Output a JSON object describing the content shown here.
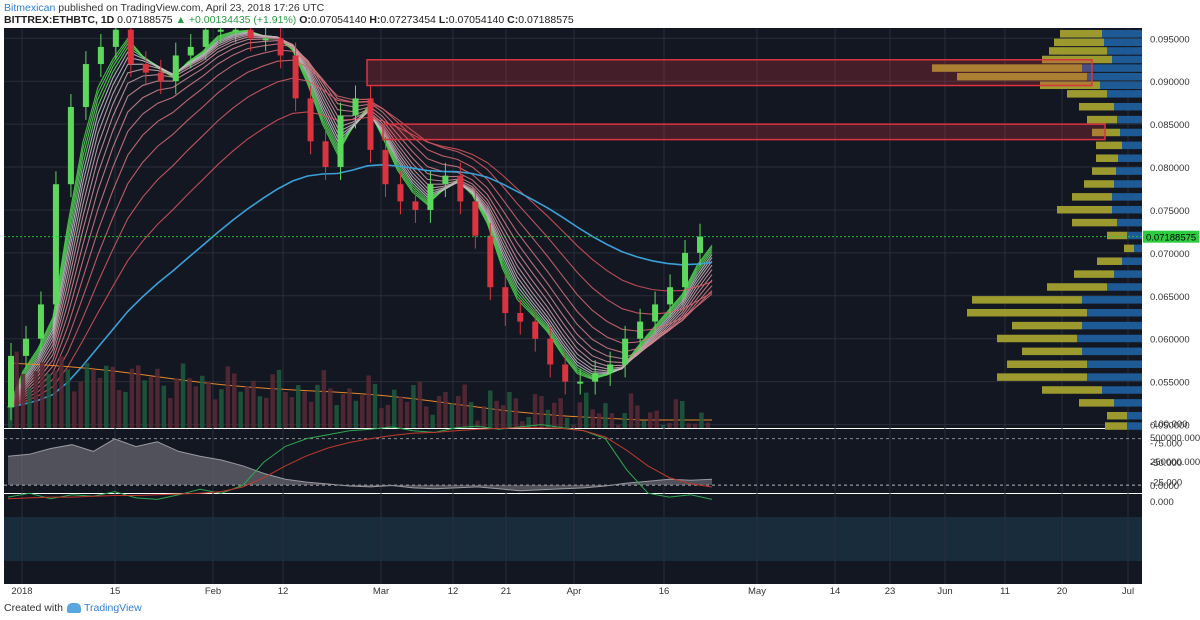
{
  "header": {
    "author": "Bitmexican",
    "published_text": "published on TradingView.com, April 23, 2018 17:26 UTC",
    "symbol": "BITTREX:ETHBTC, 1D",
    "last": "0.07188575",
    "change": "▲ +0.00134435 (+1.91%)",
    "o_label": "O:",
    "o": "0.07054140",
    "h_label": "H:",
    "h": "0.07273454",
    "l_label": "L:",
    "l": "0.07054140",
    "c_label": "C:",
    "c": "0.07188575"
  },
  "footer": {
    "created_with": "Created with",
    "brand": "TradingView"
  },
  "colors": {
    "background": "#131722",
    "up": "#5cd85c",
    "down": "#d9343f",
    "ribbon_green": "#4ed84e",
    "ribbon_red": "#e0343c",
    "ma_blue": "#3aa0d8",
    "volume_profile_up": "#9c9a2e",
    "volume_profile_down": "#1e5a96",
    "zone_red": "#d9343f",
    "price_label": "#2ecc40"
  },
  "chart_data": {
    "type": "candlestick",
    "price_axis": [
      "0.095000",
      "0.090000",
      "0.085000",
      "0.080000",
      "0.075000",
      "0.070000",
      "0.065000",
      "0.060000",
      "0.055000",
      "0.050000"
    ],
    "price_ylim": [
      0.0496,
      0.0962
    ],
    "last_price_label": "0.07188575",
    "obv_axis": [
      "500000.0000",
      "250000.0000",
      "0.0000"
    ],
    "osc_axis": [
      "0.000",
      "-25.000",
      "-50.000",
      "-75.000",
      "-100.000"
    ],
    "x_axis": [
      "2018",
      "15",
      "Feb",
      "12",
      "Mar",
      "12",
      "21",
      "Apr",
      "16",
      "May",
      "14",
      "23",
      "Jun",
      "11",
      "20",
      "Jul"
    ],
    "resistance_zones": [
      {
        "from": 0.0895,
        "to": 0.0925
      },
      {
        "from": 0.0832,
        "to": 0.085
      }
    ],
    "price_path": [
      0.052,
      0.058,
      0.06,
      0.064,
      0.078,
      0.087,
      0.092,
      0.094,
      0.096,
      0.092,
      0.091,
      0.09,
      0.093,
      0.094,
      0.096,
      0.096,
      0.096,
      0.095,
      0.095,
      0.093,
      0.088,
      0.083,
      0.08,
      0.086,
      0.088,
      0.082,
      0.078,
      0.076,
      0.075,
      0.078,
      0.079,
      0.076,
      0.072,
      0.066,
      0.063,
      0.062,
      0.06,
      0.057,
      0.055,
      0.055,
      0.056,
      0.057,
      0.06,
      0.062,
      0.064,
      0.066,
      0.07,
      0.0719
    ],
    "volume_profile": [
      {
        "price": 0.0955,
        "up": 42,
        "down": 40
      },
      {
        "price": 0.0945,
        "up": 50,
        "down": 38
      },
      {
        "price": 0.0935,
        "up": 58,
        "down": 35
      },
      {
        "price": 0.0925,
        "up": 70,
        "down": 30
      },
      {
        "price": 0.0915,
        "up": 150,
        "down": 60
      },
      {
        "price": 0.0905,
        "up": 130,
        "down": 55
      },
      {
        "price": 0.0895,
        "up": 60,
        "down": 42
      },
      {
        "price": 0.0885,
        "up": 40,
        "down": 35
      },
      {
        "price": 0.087,
        "up": 35,
        "down": 28
      },
      {
        "price": 0.0855,
        "up": 30,
        "down": 25
      },
      {
        "price": 0.084,
        "up": 28,
        "down": 22
      },
      {
        "price": 0.0825,
        "up": 26,
        "down": 20
      },
      {
        "price": 0.081,
        "up": 22,
        "down": 24
      },
      {
        "price": 0.0795,
        "up": 24,
        "down": 26
      },
      {
        "price": 0.078,
        "up": 30,
        "down": 28
      },
      {
        "price": 0.0765,
        "up": 40,
        "down": 30
      },
      {
        "price": 0.075,
        "up": 55,
        "down": 30
      },
      {
        "price": 0.0735,
        "up": 45,
        "down": 25
      },
      {
        "price": 0.072,
        "up": 20,
        "down": 15
      },
      {
        "price": 0.0705,
        "up": 10,
        "down": 8
      },
      {
        "price": 0.069,
        "up": 25,
        "down": 20
      },
      {
        "price": 0.0675,
        "up": 40,
        "down": 28
      },
      {
        "price": 0.066,
        "up": 60,
        "down": 35
      },
      {
        "price": 0.0645,
        "up": 110,
        "down": 60
      },
      {
        "price": 0.063,
        "up": 120,
        "down": 55
      },
      {
        "price": 0.0615,
        "up": 70,
        "down": 60
      },
      {
        "price": 0.06,
        "up": 80,
        "down": 65
      },
      {
        "price": 0.0585,
        "up": 60,
        "down": 60
      },
      {
        "price": 0.057,
        "up": 80,
        "down": 55
      },
      {
        "price": 0.0555,
        "up": 90,
        "down": 55
      },
      {
        "price": 0.054,
        "up": 60,
        "down": 40
      },
      {
        "price": 0.0525,
        "up": 35,
        "down": 28
      },
      {
        "price": 0.051,
        "up": 20,
        "down": 15
      },
      {
        "price": 0.0498,
        "up": 22,
        "down": 15
      }
    ],
    "obv_path": [
      300000,
      320000,
      380000,
      420000,
      350000,
      480000,
      400000,
      450000,
      350000,
      300000,
      260000,
      200000,
      120000,
      60000,
      30000,
      10000,
      -10000,
      -20000,
      -5000,
      -30000,
      -40000,
      -30000,
      -20000,
      -40000,
      -60000,
      -50000,
      -40000,
      -30000,
      -10000,
      20000,
      40000,
      60000,
      50000,
      60000
    ],
    "osc_green": [
      -5,
      -10,
      -3,
      -8,
      -6,
      -12,
      -4,
      -2,
      -8,
      -15,
      -10,
      -20,
      -50,
      -70,
      -80,
      -85,
      -90,
      -92,
      -95,
      -90,
      -88,
      -94,
      -96,
      -92,
      -95,
      -98,
      -94,
      -90,
      -80,
      -40,
      -10,
      -5,
      -8,
      -2
    ],
    "osc_red": [
      -3,
      -4,
      -5,
      -5,
      -6,
      -7,
      -7,
      -8,
      -9,
      -10,
      -12,
      -18,
      -30,
      -45,
      -58,
      -68,
      -75,
      -80,
      -84,
      -87,
      -88,
      -90,
      -92,
      -93,
      -94,
      -94,
      -93,
      -90,
      -82,
      -65,
      -45,
      -30,
      -22,
      -18
    ]
  }
}
